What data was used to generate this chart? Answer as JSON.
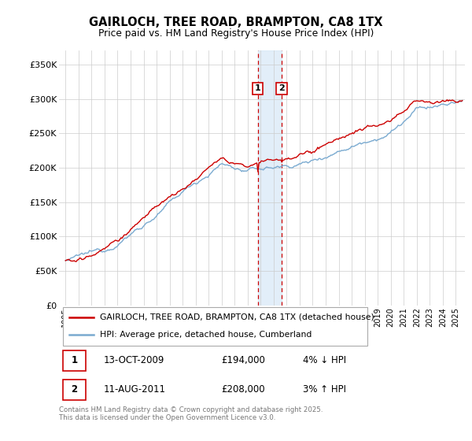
{
  "title": "GAIRLOCH, TREE ROAD, BRAMPTON, CA8 1TX",
  "subtitle": "Price paid vs. HM Land Registry's House Price Index (HPI)",
  "ylabel_ticks": [
    "£0",
    "£50K",
    "£100K",
    "£150K",
    "£200K",
    "£250K",
    "£300K",
    "£350K"
  ],
  "ytick_values": [
    0,
    50000,
    100000,
    150000,
    200000,
    250000,
    300000,
    350000
  ],
  "ylim": [
    0,
    370000
  ],
  "xlim_start": 1994.5,
  "xlim_end": 2025.7,
  "legend_entries": [
    "GAIRLOCH, TREE ROAD, BRAMPTON, CA8 1TX (detached house)",
    "HPI: Average price, detached house, Cumberland"
  ],
  "red_color": "#cc0000",
  "blue_color": "#7aaad0",
  "annotation1": {
    "label": "1",
    "date": "13-OCT-2009",
    "price": "£194,000",
    "pct": "4% ↓ HPI",
    "x": 2009.78
  },
  "annotation2": {
    "label": "2",
    "date": "11-AUG-2011",
    "price": "£208,000",
    "pct": "3% ↑ HPI",
    "x": 2011.61
  },
  "shade_x1": 2009.78,
  "shade_x2": 2011.61,
  "ann_y": 315000,
  "footnote": "Contains HM Land Registry data © Crown copyright and database right 2025.\nThis data is licensed under the Open Government Licence v3.0.",
  "table_rows": [
    [
      "1",
      "13-OCT-2009",
      "£194,000",
      "4% ↓ HPI"
    ],
    [
      "2",
      "11-AUG-2011",
      "£208,000",
      "3% ↑ HPI"
    ]
  ]
}
